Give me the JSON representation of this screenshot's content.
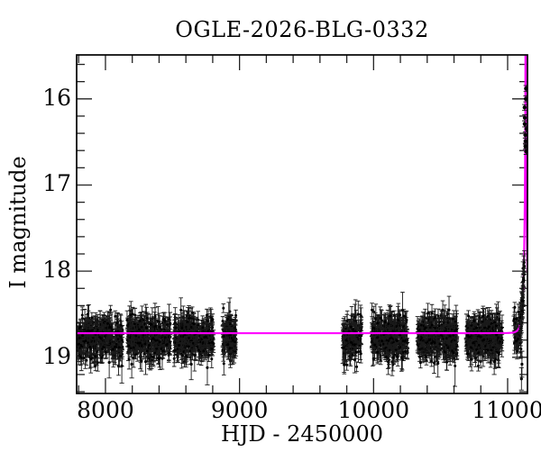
{
  "chart_data": {
    "type": "scatter",
    "title": "OGLE-2026-BLG-0332",
    "xlabel": "HJD - 2450000",
    "ylabel": "I magnitude",
    "xlim": [
      7785,
      11148
    ],
    "ylim": [
      19.42,
      15.49
    ],
    "x_ticks": [
      8000,
      9000,
      10000,
      11000
    ],
    "x_minor_step": 200,
    "y_ticks": [
      16,
      17,
      18,
      19
    ],
    "y_minor_step": 0.2,
    "grid": false,
    "legend": false,
    "background": "#ffffff",
    "point_color": "#000000",
    "errorbar_color": "#1a1a1a",
    "frame_color": "#000000",
    "baseline_magnitude": 18.72,
    "model_curve": {
      "shape": "point_lens_microlensing",
      "baseline_mag": 18.72,
      "t0": 11133.8,
      "tE": 24,
      "u0": 0.0005,
      "color": "#ff00ff"
    },
    "seasonal_clusters": [
      {
        "t_start": 7791,
        "t_end": 8128,
        "n": 340,
        "mean_mag": 18.77,
        "mag_scatter": 0.12
      },
      {
        "t_start": 8161,
        "t_end": 8484,
        "n": 330,
        "mean_mag": 18.77,
        "mag_scatter": 0.12
      },
      {
        "t_start": 8511,
        "t_end": 8807,
        "n": 300,
        "mean_mag": 18.77,
        "mag_scatter": 0.12
      },
      {
        "t_start": 8874,
        "t_end": 8975,
        "n": 130,
        "mean_mag": 18.75,
        "mag_scatter": 0.11
      },
      {
        "t_start": 9769,
        "t_end": 9910,
        "n": 140,
        "mean_mag": 18.78,
        "mag_scatter": 0.12
      },
      {
        "t_start": 9984,
        "t_end": 10253,
        "n": 300,
        "mean_mag": 18.77,
        "mag_scatter": 0.12
      },
      {
        "t_start": 10327,
        "t_end": 10623,
        "n": 310,
        "mean_mag": 18.77,
        "mag_scatter": 0.12
      },
      {
        "t_start": 10690,
        "t_end": 10959,
        "n": 300,
        "mean_mag": 18.77,
        "mag_scatter": 0.12
      },
      {
        "t_start": 11045,
        "t_end": 11100,
        "n": 50,
        "mean_mag": 18.74,
        "mag_scatter": 0.13
      }
    ],
    "rising_arm": {
      "t_start": 11098,
      "t_end": 11121,
      "n": 52,
      "mag_scatter": 0.05
    },
    "peak_points": [
      [
        11130.35,
        16.61
      ],
      [
        11130.54,
        16.55
      ],
      [
        11130.72,
        16.49
      ],
      [
        11130.91,
        16.42
      ],
      [
        11131.09,
        16.35
      ],
      [
        11131.24,
        16.29
      ],
      [
        11131.4,
        16.22
      ],
      [
        11131.65,
        16.1
      ],
      [
        11131.84,
        16.0
      ],
      [
        11132.05,
        15.88
      ]
    ],
    "outlier_points": [
      [
        8028,
        19.06,
        0.18
      ],
      [
        8122,
        19.1,
        0.2
      ],
      [
        8196,
        19.08,
        0.16
      ],
      [
        8300,
        19.05,
        0.15
      ],
      [
        8640,
        19.08,
        0.18
      ],
      [
        8760,
        19.12,
        0.2
      ],
      [
        9860,
        19.03,
        0.15
      ],
      [
        10110,
        19.05,
        0.15
      ],
      [
        10480,
        19.07,
        0.16
      ],
      [
        10900,
        19.05,
        0.15
      ],
      [
        11103,
        19.25,
        0.13
      ],
      [
        11107,
        19.08,
        0.15
      ]
    ]
  }
}
